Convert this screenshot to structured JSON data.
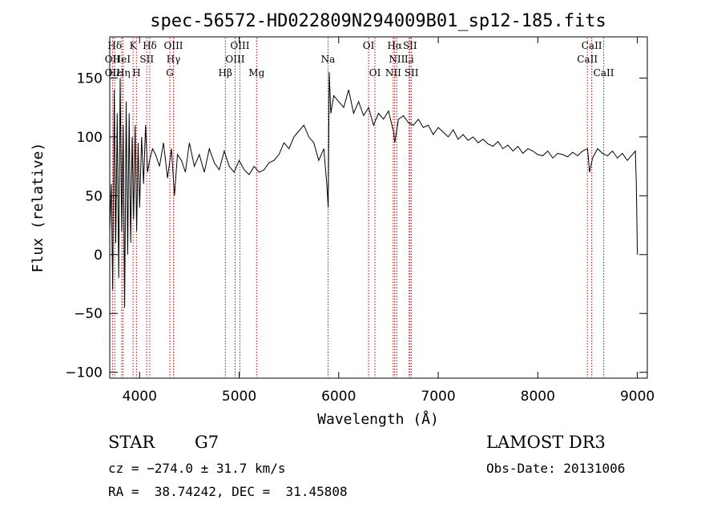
{
  "chart_data": {
    "type": "line",
    "title": "spec-56572-HD022809N294009B01_sp12-185.fits",
    "xlabel": "Wavelength (Å)",
    "ylabel": "Flux (relative)",
    "xlim": [
      3700,
      9100
    ],
    "ylim": [
      -105,
      185
    ],
    "xticks": [
      4000,
      5000,
      6000,
      7000,
      8000,
      9000
    ],
    "yticks": [
      -100,
      -50,
      0,
      50,
      100,
      150
    ],
    "ytick_labels": [
      "−100",
      "−50",
      "0",
      "50",
      "100",
      "150"
    ],
    "series": [
      {
        "name": "flux",
        "x": [
          3700,
          3715,
          3730,
          3745,
          3760,
          3775,
          3790,
          3805,
          3820,
          3835,
          3850,
          3865,
          3880,
          3895,
          3910,
          3925,
          3940,
          3955,
          3970,
          3985,
          4000,
          4020,
          4040,
          4060,
          4080,
          4100,
          4130,
          4160,
          4200,
          4240,
          4280,
          4320,
          4350,
          4380,
          4420,
          4460,
          4500,
          4550,
          4600,
          4650,
          4700,
          4750,
          4800,
          4850,
          4900,
          4950,
          5000,
          5050,
          5100,
          5150,
          5200,
          5250,
          5300,
          5350,
          5400,
          5450,
          5500,
          5550,
          5600,
          5650,
          5700,
          5750,
          5800,
          5850,
          5880,
          5895,
          5905,
          5920,
          5950,
          6000,
          6050,
          6100,
          6150,
          6200,
          6250,
          6300,
          6350,
          6400,
          6450,
          6500,
          6550,
          6563,
          6600,
          6650,
          6700,
          6750,
          6800,
          6850,
          6900,
          6950,
          7000,
          7050,
          7100,
          7150,
          7200,
          7250,
          7300,
          7350,
          7400,
          7450,
          7500,
          7550,
          7600,
          7650,
          7700,
          7750,
          7800,
          7850,
          7900,
          7950,
          8000,
          8050,
          8100,
          8150,
          8200,
          8250,
          8300,
          8350,
          8400,
          8450,
          8500,
          8520,
          8550,
          8600,
          8650,
          8700,
          8750,
          8800,
          8850,
          8900,
          8950,
          8980,
          8990,
          9000
        ],
        "y": [
          20,
          60,
          -30,
          140,
          10,
          120,
          -20,
          150,
          20,
          110,
          -45,
          130,
          0,
          120,
          10,
          100,
          30,
          110,
          20,
          95,
          40,
          100,
          60,
          110,
          70,
          80,
          90,
          85,
          75,
          95,
          65,
          90,
          50,
          85,
          80,
          70,
          95,
          75,
          85,
          70,
          90,
          78,
          72,
          88,
          75,
          70,
          80,
          72,
          68,
          75,
          70,
          72,
          78,
          80,
          85,
          95,
          90,
          100,
          105,
          110,
          100,
          95,
          80,
          90,
          60,
          40,
          155,
          120,
          135,
          130,
          125,
          140,
          120,
          130,
          118,
          125,
          110,
          120,
          115,
          122,
          105,
          95,
          115,
          118,
          112,
          110,
          115,
          108,
          110,
          102,
          108,
          104,
          100,
          106,
          98,
          102,
          97,
          100,
          95,
          98,
          94,
          92,
          96,
          90,
          93,
          88,
          92,
          86,
          90,
          88,
          85,
          84,
          88,
          82,
          86,
          85,
          83,
          87,
          84,
          88,
          90,
          70,
          82,
          90,
          86,
          84,
          88,
          82,
          86,
          80,
          85,
          88,
          60,
          0
        ]
      }
    ],
    "lines": [
      {
        "label": "Hδ",
        "wl": 3750,
        "row": 1
      },
      {
        "label": "K",
        "wl": 3934,
        "row": 1
      },
      {
        "label": "Hδ",
        "wl": 4102,
        "row": 1
      },
      {
        "label": "OIII",
        "wl": 4340,
        "row": 1
      },
      {
        "label": "OIII",
        "wl": 5007,
        "row": 1
      },
      {
        "label": "OI",
        "wl": 6300,
        "row": 1
      },
      {
        "label": "Hα",
        "wl": 6563,
        "row": 1
      },
      {
        "label": "SII",
        "wl": 6716,
        "row": 1
      },
      {
        "label": "CaII",
        "wl": 8542,
        "row": 1
      },
      {
        "label": "OII",
        "wl": 3727,
        "row": 2
      },
      {
        "label": "HeI",
        "wl": 3820,
        "row": 2
      },
      {
        "label": "SII",
        "wl": 4072,
        "row": 2
      },
      {
        "label": "Hγ",
        "wl": 4340,
        "row": 2
      },
      {
        "label": "OIII",
        "wl": 4959,
        "row": 2
      },
      {
        "label": "Na",
        "wl": 5893,
        "row": 2
      },
      {
        "label": "NII",
        "wl": 6584,
        "row": 2
      },
      {
        "label": "Li",
        "wl": 6708,
        "row": 2
      },
      {
        "label": "CaII",
        "wl": 8498,
        "row": 2
      },
      {
        "label": "OII",
        "wl": 3727,
        "row": 3
      },
      {
        "label": "Hε",
        "wl": 3750,
        "row": 3
      },
      {
        "label": "Hη",
        "wl": 3835,
        "row": 3
      },
      {
        "label": "H",
        "wl": 3968,
        "row": 3
      },
      {
        "label": "G",
        "wl": 4304,
        "row": 3
      },
      {
        "label": "Hβ",
        "wl": 4861,
        "row": 3
      },
      {
        "label": "Mg",
        "wl": 5175,
        "row": 3
      },
      {
        "label": "OI",
        "wl": 6364,
        "row": 3
      },
      {
        "label": "NII",
        "wl": 6548,
        "row": 3
      },
      {
        "label": "SII",
        "wl": 6731,
        "row": 3
      },
      {
        "label": "CaII",
        "wl": 8662,
        "row": 3
      }
    ]
  },
  "info": {
    "object_class": "STAR",
    "subclass": "G7",
    "survey": "LAMOST DR3",
    "cz": "cz = −274.0 ± 31.7 km/s",
    "obs_date": "Obs-Date: 20131006",
    "coords": "RA =  38.74242, DEC =  31.45808"
  }
}
